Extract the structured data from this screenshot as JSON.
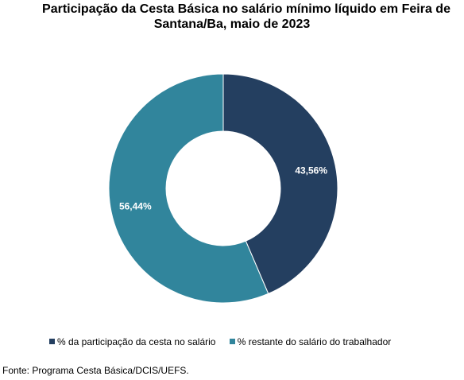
{
  "chart_data": {
    "type": "pie",
    "title_lines": [
      "Participação da Cesta Básica no salário mínimo líquido em Feira de",
      "Santana/Ba, maio de 2023"
    ],
    "categories": [
      "% da participação da cesta no salário",
      "% restante do salário do trabalhador"
    ],
    "values": [
      43.56,
      56.44
    ],
    "value_labels": [
      "43,56%",
      "56,44%"
    ],
    "colors": [
      "#243f60",
      "#31859c"
    ],
    "donut": true,
    "legend_position": "bottom"
  },
  "source_text": "Fonte: Programa Cesta Básica/DCIS/UEFS."
}
